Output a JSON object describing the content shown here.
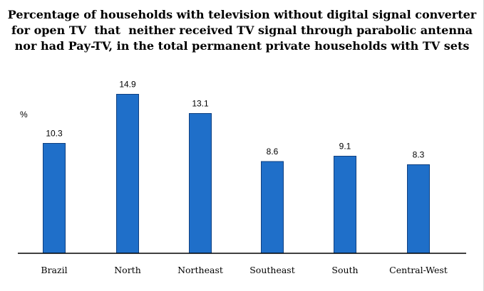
{
  "chart_data": {
    "type": "bar",
    "title_lines": [
      "Percentage of households with television without digital signal converter",
      "for open TV  that  neither received TV signal through parabolic antenna",
      "nor had Pay-TV, in the total permanent private households with TV sets"
    ],
    "ylabel": "%",
    "xlabel": "",
    "categories": [
      "Brazil",
      "North",
      "Northeast",
      "Southeast",
      "South",
      "Central-West"
    ],
    "values": [
      10.3,
      14.9,
      13.1,
      8.6,
      9.1,
      8.3
    ],
    "value_labels": [
      "10.3",
      "14.9",
      "13.1",
      "8.6",
      "9.1",
      "8.3"
    ],
    "ylim": [
      0,
      18
    ],
    "grid": false,
    "legend": "none",
    "bar_color": "#1f6fc9",
    "bar_edge_color": "#0e3f80",
    "axis_color": "#000000"
  }
}
